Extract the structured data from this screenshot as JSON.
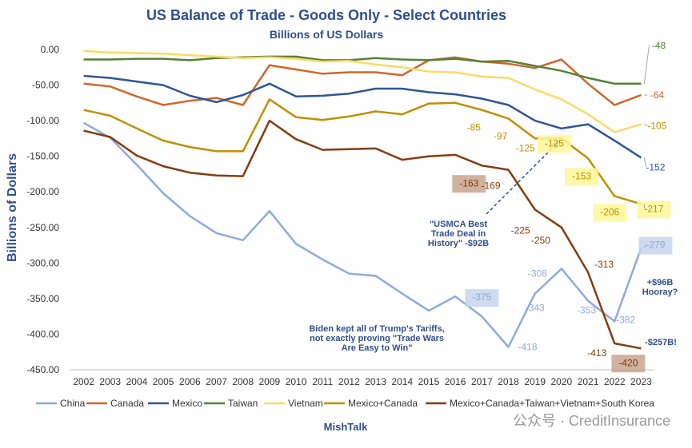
{
  "chart_data": {
    "type": "line",
    "title": "US Balance of Trade - Goods Only - Select Countries",
    "subtitle": "Billions of US Dollars",
    "ylabel": "Billions of Dollars",
    "xlabel": "MishTalk",
    "watermark": "公众号 · CreditInsurance",
    "ylim": [
      -450,
      0
    ],
    "yticks": [
      "0.00",
      "-50.00",
      "-100.00",
      "-150.00",
      "-200.00",
      "-250.00",
      "-300.00",
      "-350.00",
      "-400.00",
      "-450.00"
    ],
    "x": [
      "2002",
      "2003",
      "2004",
      "2005",
      "2006",
      "2007",
      "2008",
      "2009",
      "2010",
      "2011",
      "2012",
      "2013",
      "2014",
      "2015",
      "2016",
      "2017",
      "2018",
      "2019",
      "2020",
      "2021",
      "2022",
      "2023"
    ],
    "series": [
      {
        "name": "China",
        "color": "#8faadc",
        "values": [
          -103,
          -124,
          -162,
          -202,
          -234,
          -258,
          -268,
          -227,
          -273,
          -295,
          -315,
          -318,
          -343,
          -367,
          -347,
          -375,
          -418,
          -343,
          -308,
          -353,
          -382,
          -279
        ]
      },
      {
        "name": "Canada",
        "color": "#d0672a",
        "values": [
          -48,
          -52,
          -66,
          -78,
          -72,
          -68,
          -78,
          -22,
          -28,
          -34,
          -32,
          -32,
          -36,
          -15,
          -11,
          -17,
          -20,
          -26,
          -14,
          -48,
          -78,
          -64
        ]
      },
      {
        "name": "Mexico",
        "color": "#2e5597",
        "values": [
          -37,
          -40,
          -45,
          -50,
          -65,
          -74,
          -64,
          -48,
          -66,
          -65,
          -62,
          -55,
          -55,
          -60,
          -63,
          -69,
          -78,
          -100,
          -111,
          -105,
          -128,
          -152
        ]
      },
      {
        "name": "Taiwan",
        "color": "#548235",
        "values": [
          -14,
          -14,
          -13,
          -13,
          -15,
          -12,
          -11,
          -10,
          -10,
          -15,
          -15,
          -12,
          -14,
          -15,
          -13,
          -17,
          -16,
          -23,
          -30,
          -40,
          -48,
          -48
        ]
      },
      {
        "name": "Vietnam",
        "color": "#ffd966",
        "values": [
          -2,
          -4,
          -5,
          -6,
          -8,
          -10,
          -12,
          -11,
          -13,
          -17,
          -16,
          -21,
          -25,
          -31,
          -32,
          -38,
          -40,
          -56,
          -70,
          -91,
          -116,
          -105
        ]
      },
      {
        "name": "Mexico+Canada",
        "color": "#bf9000",
        "values": [
          -85,
          -93,
          -111,
          -128,
          -137,
          -143,
          -143,
          -70,
          -95,
          -99,
          -94,
          -87,
          -91,
          -76,
          -75,
          -85,
          -97,
          -125,
          -125,
          -153,
          -206,
          -217
        ]
      },
      {
        "name": "Mexico+Canada+Taiwan+Vietnam+South Korea",
        "color": "#843c0c",
        "values": [
          -114,
          -123,
          -149,
          -164,
          -173,
          -177,
          -178,
          -100,
          -126,
          -141,
          -140,
          -139,
          -155,
          -150,
          -148,
          -163,
          -169,
          -225,
          -250,
          -313,
          -413,
          -420
        ]
      }
    ],
    "data_labels": [
      {
        "text": "-48",
        "series": "Taiwan",
        "year": "2023"
      },
      {
        "text": "-64",
        "series": "Canada",
        "year": "2023"
      },
      {
        "text": "-105",
        "series": "Vietnam",
        "year": "2023"
      },
      {
        "text": "-152",
        "series": "Mexico",
        "year": "2023"
      },
      {
        "text": "-217",
        "series": "Mexico+Canada",
        "year": "2023"
      },
      {
        "text": "-279",
        "series": "China",
        "year": "2023"
      },
      {
        "text": "-85",
        "series": "Mexico+Canada",
        "year": "2017"
      },
      {
        "text": "-97",
        "series": "Mexico+Canada",
        "year": "2018"
      },
      {
        "text": "-125",
        "series": "Mexico+Canada",
        "year": "2019"
      },
      {
        "text": "-125",
        "series": "Mexico+Canada",
        "year": "2020"
      },
      {
        "text": "-153",
        "series": "Mexico+Canada",
        "year": "2021"
      },
      {
        "text": "-206",
        "series": "Mexico+Canada",
        "year": "2022"
      },
      {
        "text": "-163",
        "series": "Mexico+Canada+Taiwan+Vietnam+South Korea",
        "year": "2017"
      },
      {
        "text": "-169",
        "series": "Mexico+Canada+Taiwan+Vietnam+South Korea",
        "year": "2018"
      },
      {
        "text": "-225",
        "series": "Mexico+Canada+Taiwan+Vietnam+South Korea",
        "year": "2019"
      },
      {
        "text": "-250",
        "series": "Mexico+Canada+Taiwan+Vietnam+South Korea",
        "year": "2020"
      },
      {
        "text": "-313",
        "series": "Mexico+Canada+Taiwan+Vietnam+South Korea",
        "year": "2021"
      },
      {
        "text": "-413",
        "series": "Mexico+Canada+Taiwan+Vietnam+South Korea",
        "year": "2022"
      },
      {
        "text": "-420",
        "series": "Mexico+Canada+Taiwan+Vietnam+South Korea",
        "year": "2023"
      },
      {
        "text": "-375",
        "series": "China",
        "year": "2017"
      },
      {
        "text": "-418",
        "series": "China",
        "year": "2018"
      },
      {
        "text": "-343",
        "series": "China",
        "year": "2019"
      },
      {
        "text": "-308",
        "series": "China",
        "year": "2020"
      },
      {
        "text": "-353",
        "series": "China",
        "year": "2021"
      },
      {
        "text": "-382",
        "series": "China",
        "year": "2022"
      }
    ],
    "annotations": [
      {
        "lines": [
          "\"USMCA Best",
          "Trade Deal in",
          "History\" -$92B"
        ]
      },
      {
        "lines": [
          "+$96B",
          "Hooray?"
        ]
      },
      {
        "lines": [
          "-$257B!"
        ]
      },
      {
        "lines": [
          "Biden kept all of Trump's Tariffs,",
          "not exactly proving \"Trade Wars",
          "Are Easy to Win\""
        ]
      }
    ],
    "legend_position": "bottom",
    "grid": false
  }
}
